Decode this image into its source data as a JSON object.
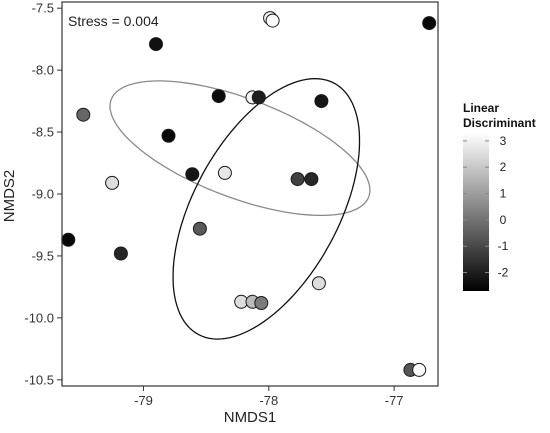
{
  "chart_data": {
    "type": "scatter",
    "title": "",
    "xlabel": "NMDS1",
    "ylabel": "NMDS2",
    "xlim": [
      -79.65,
      -76.65
    ],
    "ylim": [
      -10.55,
      -7.45
    ],
    "x_ticks": [
      {
        "value": -79,
        "label": "-79"
      },
      {
        "value": -78,
        "label": "-78"
      },
      {
        "value": -77,
        "label": "-77"
      }
    ],
    "y_ticks": [
      {
        "value": -7.5,
        "label": "-7.5"
      },
      {
        "value": -8.0,
        "label": "-8.0"
      },
      {
        "value": -8.5,
        "label": "-8.5"
      },
      {
        "value": -9.0,
        "label": "-9.0"
      },
      {
        "value": -9.5,
        "label": "-9.5"
      },
      {
        "value": -10.0,
        "label": "-10.0"
      },
      {
        "value": -10.5,
        "label": "-10.5"
      }
    ],
    "grid": false,
    "annotation": "Stress = 0.004",
    "legend": {
      "title_line1": "Linear",
      "title_line2": "Discriminant",
      "placement": "right",
      "min": -2.7,
      "max": 3.3,
      "ticks": [
        {
          "value": 3,
          "label": "3"
        },
        {
          "value": 2,
          "label": "2"
        },
        {
          "value": 1,
          "label": "1"
        },
        {
          "value": 0,
          "label": "0"
        },
        {
          "value": -1,
          "label": "-1"
        },
        {
          "value": -2,
          "label": "-2"
        }
      ],
      "color_low": "#000000",
      "color_high": "#ffffff"
    },
    "points": [
      {
        "x": -77.99,
        "y": -7.58,
        "ld": 3.0
      },
      {
        "x": -77.97,
        "y": -7.6,
        "ld": 3.2
      },
      {
        "x": -76.72,
        "y": -7.62,
        "ld": -2.5
      },
      {
        "x": -78.9,
        "y": -7.79,
        "ld": -2.3
      },
      {
        "x": -79.48,
        "y": -8.36,
        "ld": -0.3
      },
      {
        "x": -78.4,
        "y": -8.21,
        "ld": -2.4
      },
      {
        "x": -78.13,
        "y": -8.22,
        "ld": 3.0
      },
      {
        "x": -78.08,
        "y": -8.22,
        "ld": -2.0
      },
      {
        "x": -77.58,
        "y": -8.25,
        "ld": -2.2
      },
      {
        "x": -78.8,
        "y": -8.53,
        "ld": -2.5
      },
      {
        "x": -78.61,
        "y": -8.84,
        "ld": -2.2
      },
      {
        "x": -78.35,
        "y": -8.83,
        "ld": 2.7
      },
      {
        "x": -79.25,
        "y": -8.91,
        "ld": 2.5
      },
      {
        "x": -77.77,
        "y": -8.88,
        "ld": -1.2
      },
      {
        "x": -77.66,
        "y": -8.88,
        "ld": -1.8
      },
      {
        "x": -78.55,
        "y": -9.28,
        "ld": -0.6
      },
      {
        "x": -79.6,
        "y": -9.37,
        "ld": -2.5
      },
      {
        "x": -79.18,
        "y": -9.48,
        "ld": -1.8
      },
      {
        "x": -77.6,
        "y": -9.72,
        "ld": 2.5
      },
      {
        "x": -78.22,
        "y": -9.87,
        "ld": 2.5
      },
      {
        "x": -78.13,
        "y": -9.87,
        "ld": 1.7
      },
      {
        "x": -78.06,
        "y": -9.88,
        "ld": 0.2
      },
      {
        "x": -76.87,
        "y": -10.42,
        "ld": -0.7
      },
      {
        "x": -76.8,
        "y": -10.42,
        "ld": 3.2
      }
    ],
    "ellipses": [
      {
        "cx": -78.23,
        "cy": -8.63,
        "rx": 1.1,
        "ry": 0.4,
        "rotation_deg": -21,
        "color": "#8a8a8a"
      },
      {
        "cx": -78.02,
        "cy": -9.12,
        "rx": 0.58,
        "ry": 1.15,
        "rotation_deg": -28,
        "color": "#111111"
      }
    ]
  }
}
